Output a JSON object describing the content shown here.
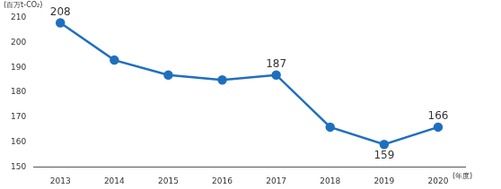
{
  "chart_data": {
    "type": "line",
    "ylabel": "(百万t-CO₂)",
    "xlabel": "(年度)",
    "categories": [
      "2013",
      "2014",
      "2015",
      "2016",
      "2017",
      "2018",
      "2019",
      "2020"
    ],
    "values": [
      208,
      193,
      187,
      185,
      187,
      166,
      159,
      166
    ],
    "value_labels": [
      "208",
      null,
      null,
      null,
      "187",
      null,
      "159",
      "166"
    ],
    "data_labels": true,
    "color": "#1f6fbf",
    "marker": "circle",
    "ylim": [
      150,
      210
    ],
    "yticks": [
      150,
      160,
      170,
      180,
      190,
      200,
      210
    ],
    "grid": false
  }
}
